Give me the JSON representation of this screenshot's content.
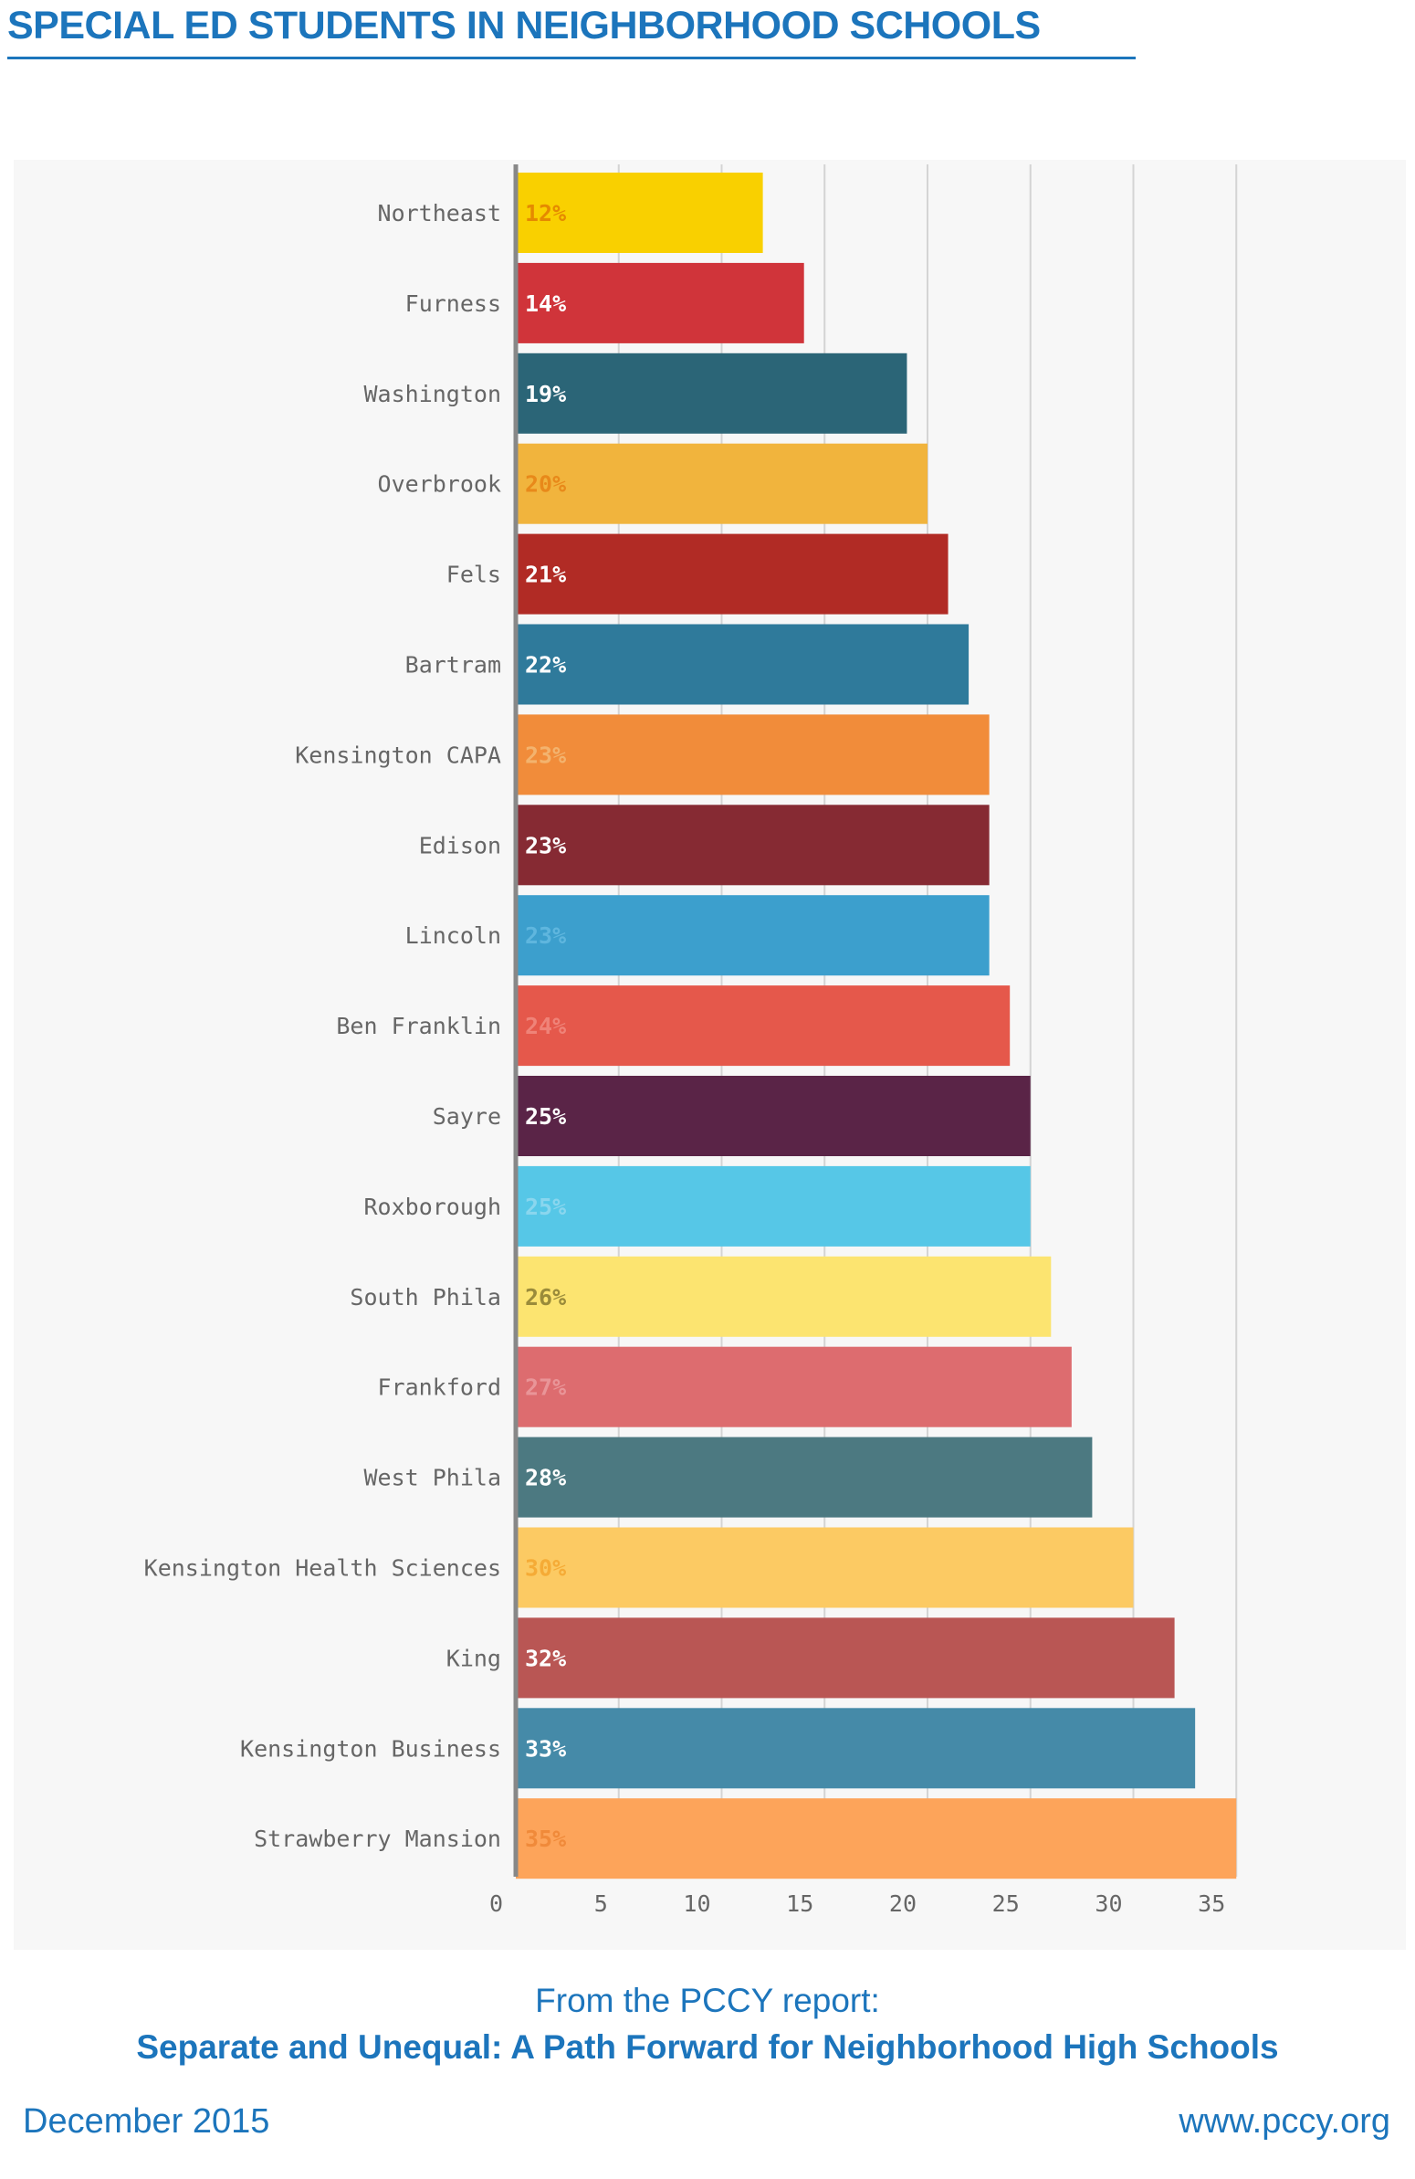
{
  "page": {
    "title": "SPECIAL ED STUDENTS IN NEIGHBORHOOD SCHOOLS",
    "source_intro": "From the PCCY report:",
    "source_title": "Separate and Unequal: A Path Forward for Neighborhood High Schools",
    "date": "December 2015",
    "url": "www.pccy.org"
  },
  "chart_data": {
    "type": "bar",
    "orientation": "horizontal",
    "title": "",
    "xlabel": "",
    "ylabel": "",
    "xlim": [
      0,
      35
    ],
    "x_ticks": [
      0,
      5,
      10,
      15,
      20,
      25,
      30,
      35
    ],
    "grid": true,
    "legend": "none",
    "categories": [
      "Northeast",
      "Furness",
      "Washington",
      "Overbrook",
      "Fels",
      "Bartram",
      "Kensington CAPA",
      "Edison",
      "Lincoln",
      "Ben Franklin",
      "Sayre",
      "Roxborough",
      "South Phila",
      "Frankford",
      "West Phila",
      "Kensington Health Sciences",
      "King",
      "Kensington Business",
      "Strawberry Mansion"
    ],
    "values": [
      12,
      14,
      19,
      20,
      21,
      22,
      23,
      23,
      23,
      24,
      25,
      25,
      26,
      27,
      28,
      30,
      32,
      33,
      35
    ],
    "value_labels": [
      "12%",
      "14%",
      "19%",
      "20%",
      "21%",
      "22%",
      "23%",
      "23%",
      "23%",
      "24%",
      "25%",
      "25%",
      "26%",
      "27%",
      "28%",
      "30%",
      "32%",
      "33%",
      "35%"
    ],
    "colors": [
      "#f9d000",
      "#d0343a",
      "#2b6577",
      "#f1b43d",
      "#b12b25",
      "#2f7a9b",
      "#f18c3a",
      "#862a33",
      "#3c9fcd",
      "#e5584b",
      "#5a2447",
      "#56c7e7",
      "#fce470",
      "#dd6c6f",
      "#4c7981",
      "#fcca63",
      "#b95654",
      "#458aa8",
      "#fda45a"
    ],
    "label_colors": [
      "#e58a00",
      "#ffffff",
      "#ffffff",
      "#e8891a",
      "#ffffff",
      "#ffffff",
      "#f3b36e",
      "#ffffff",
      "#5fb6de",
      "#ef8378",
      "#ffffff",
      "#8ad6ee",
      "#9a8b3a",
      "#e99598",
      "#ffffff",
      "#f5ab36",
      "#ffffff",
      "#ffffff",
      "#f08a3a"
    ]
  }
}
